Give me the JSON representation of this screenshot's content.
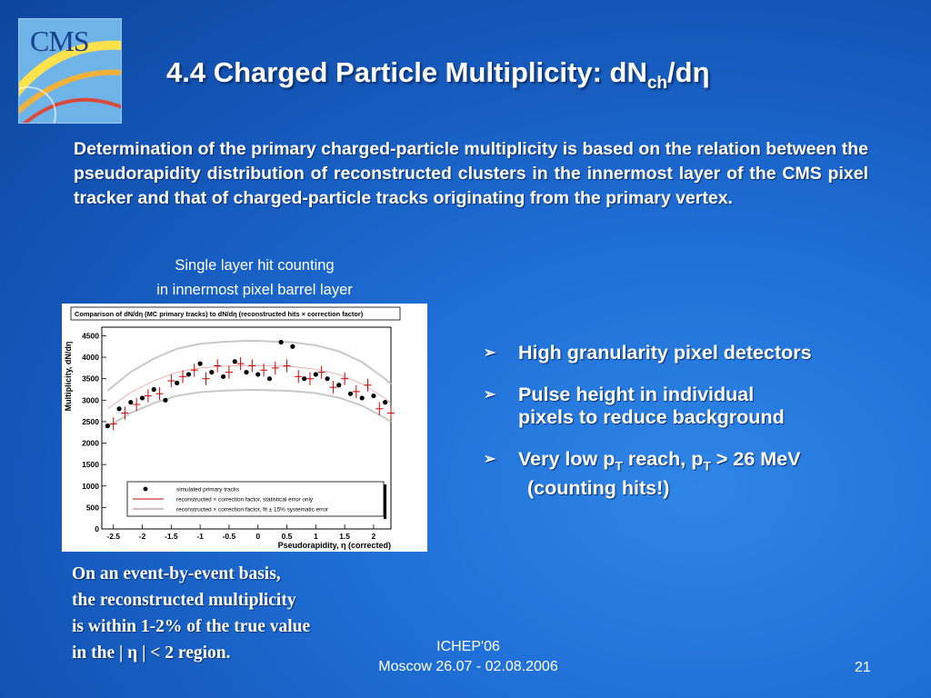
{
  "logo": {
    "text": "CMS"
  },
  "title": {
    "main": "4.4 Charged Particle Multiplicity: dN",
    "sub": "ch",
    "tail": "/dη"
  },
  "intro": "Determination of the primary charged-particle multiplicity is based on the relation between the pseudorapidity distribution of reconstructed clusters in the innermost layer of the CMS pixel tracker and that of charged-particle tracks originating from the primary vertex.",
  "caption": {
    "line1": "Single layer hit counting",
    "line2": "in innermost pixel barrel layer"
  },
  "bullets": [
    {
      "lines": [
        {
          "text": "High granularity pixel detectors"
        }
      ]
    },
    {
      "lines": [
        {
          "text": "Pulse height in individual"
        },
        {
          "text": "pixels to reduce background"
        }
      ]
    },
    {
      "lines": [
        {
          "t1": "Very low p",
          "s1": "T",
          "t2": " reach, p",
          "s2": "T",
          "t3": " > 26 MeV"
        },
        {
          "text": "(counting hits!)"
        }
      ]
    }
  ],
  "note": {
    "line1": "On an event-by-event basis,",
    "line2": "the reconstructed multiplicity",
    "line3": "is within 1-2% of the true value",
    "line4": "in the | η | < 2 region."
  },
  "footer": {
    "conf": "ICHEP'06",
    "place": "Moscow 26.07 - 02.08.2006",
    "page": "21"
  },
  "colors": {
    "background": "#1a62c8",
    "points": "#000000",
    "reco": "#cc0000",
    "band": "#c8c8c8"
  },
  "chart_data": {
    "type": "scatter",
    "title": "Comparison of dN/dη (MC primary tracks) to dN/dη (reconstructed hits × correction factor)",
    "xlabel": "Pseudorapidity, η (corrected)",
    "ylabel": "Multiplicity, dN/dη",
    "xlim": [
      -2.7,
      2.3
    ],
    "ylim": [
      0,
      4700
    ],
    "xticks": [
      "-2.5",
      "-2",
      "-1.5",
      "-1",
      "-0.5",
      "0",
      "0.5",
      "1",
      "1.5",
      "2"
    ],
    "xtick_values": [
      -2.5,
      -2,
      -1.5,
      -1,
      -0.5,
      0,
      0.5,
      1,
      1.5,
      2
    ],
    "yticks": [
      "0",
      "500",
      "1000",
      "1500",
      "2000",
      "2500",
      "3000",
      "3500",
      "4000",
      "4500"
    ],
    "ytick_values": [
      0,
      500,
      1000,
      1500,
      2000,
      2500,
      3000,
      3500,
      4000,
      4500
    ],
    "legend": [
      "simulated primary tracks",
      "reconstructed × correction factor, statistical error only",
      "reconstructed × correction factor, fit ± 15% systematic error"
    ],
    "legend_position": "bottom-center",
    "series": [
      {
        "name": "simulated primary tracks",
        "x": [
          -2.6,
          -2.4,
          -2.2,
          -2.0,
          -1.8,
          -1.6,
          -1.4,
          -1.2,
          -1.0,
          -0.8,
          -0.6,
          -0.4,
          -0.2,
          0.0,
          0.2,
          0.4,
          0.6,
          0.8,
          1.0,
          1.2,
          1.4,
          1.6,
          1.8,
          2.0,
          2.2
        ],
        "y": [
          2400,
          2800,
          2950,
          3050,
          3250,
          3000,
          3400,
          3600,
          3850,
          3650,
          3550,
          3900,
          3650,
          3600,
          3500,
          4350,
          4250,
          3500,
          3600,
          3500,
          3350,
          3150,
          3050,
          3100,
          2950
        ]
      },
      {
        "name": "reconstructed × correction factor, statistical error only",
        "x": [
          -2.5,
          -2.3,
          -2.1,
          -1.9,
          -1.7,
          -1.5,
          -1.3,
          -1.1,
          -0.9,
          -0.7,
          -0.5,
          -0.3,
          -0.1,
          0.1,
          0.3,
          0.5,
          0.7,
          0.9,
          1.1,
          1.3,
          1.5,
          1.7,
          1.9,
          2.1,
          2.3
        ],
        "y": [
          2450,
          2700,
          2900,
          3100,
          3150,
          3450,
          3550,
          3700,
          3500,
          3800,
          3650,
          3850,
          3800,
          3700,
          3750,
          3800,
          3550,
          3500,
          3650,
          3300,
          3500,
          3200,
          3350,
          2800,
          2700
        ],
        "error": [
          150,
          150,
          150,
          150,
          150,
          150,
          150,
          150,
          150,
          150,
          150,
          150,
          150,
          150,
          150,
          150,
          150,
          150,
          150,
          150,
          150,
          150,
          150,
          150,
          150
        ]
      }
    ],
    "band_center": {
      "x": [
        -2.6,
        -2.2,
        -1.8,
        -1.4,
        -1.0,
        -0.6,
        -0.2,
        0.0,
        0.2,
        0.6,
        1.0,
        1.4,
        1.8,
        2.2,
        2.3
      ],
      "y": [
        2800,
        3180,
        3450,
        3650,
        3750,
        3790,
        3810,
        3810,
        3800,
        3780,
        3720,
        3600,
        3380,
        3040,
        2930
      ]
    },
    "band_fraction": 0.15
  }
}
